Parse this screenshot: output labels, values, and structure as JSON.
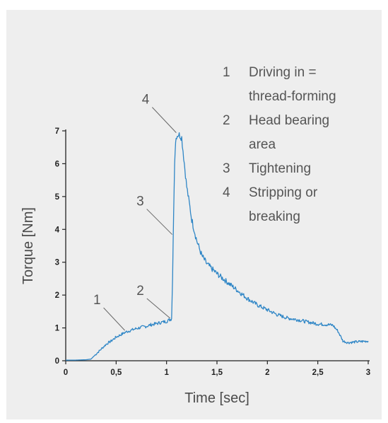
{
  "chart_data": {
    "type": "line",
    "xlabel": "Time [sec]",
    "ylabel": "Torque [Nm]",
    "xlim": [
      0,
      3
    ],
    "ylim": [
      0,
      7
    ],
    "x_ticks": [
      {
        "value": 0,
        "label": "0"
      },
      {
        "value": 0.5,
        "label": "0,5"
      },
      {
        "value": 1,
        "label": "1"
      },
      {
        "value": 1.5,
        "label": "1,5"
      },
      {
        "value": 2,
        "label": "2"
      },
      {
        "value": 2.5,
        "label": "2,5"
      },
      {
        "value": 3,
        "label": "3"
      }
    ],
    "y_ticks": [
      {
        "value": 0,
        "label": "0"
      },
      {
        "value": 1,
        "label": "1"
      },
      {
        "value": 2,
        "label": "2"
      },
      {
        "value": 3,
        "label": "3"
      },
      {
        "value": 4,
        "label": "4"
      },
      {
        "value": 5,
        "label": "5"
      },
      {
        "value": 6,
        "label": "6"
      },
      {
        "value": 7,
        "label": "7"
      }
    ],
    "grid": false,
    "series": [
      {
        "color": "#2f86c6",
        "x": [
          0,
          0.1,
          0.2,
          0.25,
          0.3,
          0.35,
          0.4,
          0.45,
          0.5,
          0.55,
          0.6,
          0.65,
          0.7,
          0.75,
          0.8,
          0.85,
          0.9,
          0.95,
          1.0,
          1.05,
          1.06,
          1.07,
          1.08,
          1.09,
          1.1,
          1.12,
          1.15,
          1.17,
          1.2,
          1.25,
          1.3,
          1.35,
          1.4,
          1.5,
          1.6,
          1.7,
          1.8,
          1.9,
          2.0,
          2.1,
          2.2,
          2.3,
          2.4,
          2.5,
          2.6,
          2.65,
          2.7,
          2.75,
          2.8,
          2.9,
          3.0
        ],
        "y": [
          0.02,
          0.02,
          0.03,
          0.05,
          0.2,
          0.35,
          0.5,
          0.6,
          0.72,
          0.8,
          0.88,
          0.93,
          0.98,
          1.02,
          1.05,
          1.1,
          1.13,
          1.17,
          1.2,
          1.28,
          2.5,
          4.5,
          6.0,
          6.7,
          6.85,
          6.9,
          6.8,
          6.2,
          5.3,
          4.3,
          3.65,
          3.2,
          2.95,
          2.65,
          2.4,
          2.15,
          1.9,
          1.7,
          1.55,
          1.4,
          1.3,
          1.25,
          1.18,
          1.12,
          1.1,
          1.08,
          0.9,
          0.6,
          0.55,
          0.58,
          0.6
        ]
      }
    ],
    "annotations": [
      {
        "label": "1",
        "x": 0.6,
        "y": 0.88
      },
      {
        "label": "2",
        "x": 1.05,
        "y": 1.25
      },
      {
        "label": "3",
        "x": 1.07,
        "y": 3.8
      },
      {
        "label": "4",
        "x": 1.11,
        "y": 6.9
      }
    ],
    "legend": {
      "placement": "top-right",
      "items": [
        {
          "number": "1",
          "lines": [
            "Driving in =",
            "thread-forming"
          ]
        },
        {
          "number": "2",
          "lines": [
            "Head bearing",
            "area"
          ]
        },
        {
          "number": "3",
          "lines": [
            "Tightening"
          ]
        },
        {
          "number": "4",
          "lines": [
            "Stripping or",
            "breaking"
          ]
        }
      ]
    },
    "colors": {
      "panel_background": "#eeeeee",
      "axis": "#222222",
      "text": "#555555"
    }
  }
}
